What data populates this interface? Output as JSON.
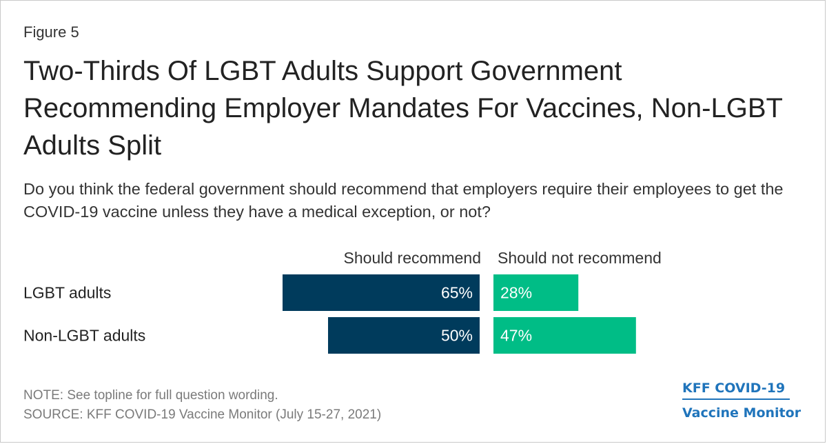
{
  "figure_label": "Figure 5",
  "title": "Two-Thirds Of LGBT Adults Support Government Recommending Employer Mandates For Vaccines, Non-LGBT Adults Split",
  "subtitle": "Do you think the federal government should recommend that employers require their employees to get the COVID-19 vaccine unless they have a medical exception, or not?",
  "chart_data": {
    "type": "bar",
    "orientation": "horizontal-diverging",
    "categories": [
      "LGBT adults",
      "Non-LGBT adults"
    ],
    "series": [
      {
        "name": "Should recommend",
        "values": [
          65,
          50
        ],
        "labels": [
          "65%",
          "50%"
        ],
        "color": "#003b5c"
      },
      {
        "name": "Should not recommend",
        "values": [
          28,
          47
        ],
        "labels": [
          "28%",
          "47%"
        ],
        "color": "#00bd86"
      }
    ],
    "unit": "%",
    "grid": false,
    "legend": "top"
  },
  "notes": {
    "note": "NOTE: See topline for full question wording.",
    "source": "SOURCE: KFF COVID-19 Vaccine Monitor (July 15-27, 2021)"
  },
  "logo": {
    "line1": "KFF COVID-19",
    "line2": "Vaccine Monitor"
  }
}
